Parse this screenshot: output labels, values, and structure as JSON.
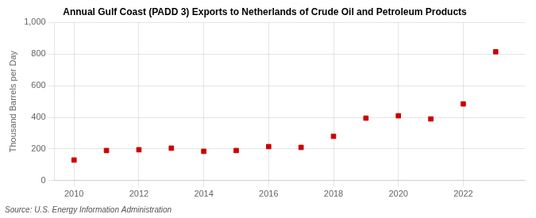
{
  "chart_data": {
    "type": "scatter",
    "title": "Annual Gulf Coast (PADD 3) Exports to Netherlands of Crude Oil and Petroleum Products",
    "ylabel": "Thousand Barrels per Day",
    "annotations": [
      "Source: U.S. Energy Information Administration"
    ],
    "x": [
      2010,
      2011,
      2012,
      2013,
      2014,
      2015,
      2016,
      2017,
      2018,
      2019,
      2020,
      2021,
      2022,
      2023
    ],
    "values": [
      130,
      190,
      195,
      205,
      185,
      190,
      215,
      210,
      280,
      395,
      410,
      390,
      485,
      815
    ],
    "color": "#cc0000",
    "marker": "square",
    "xlim": [
      2009.4,
      2023.9
    ],
    "xticks": [
      2010,
      2012,
      2014,
      2016,
      2018,
      2020,
      2022
    ],
    "ylim": [
      0,
      1000
    ],
    "yticks": [
      0,
      200,
      400,
      600,
      800,
      {
        "value": 1000,
        "label": "1,000"
      }
    ],
    "grid": true
  }
}
